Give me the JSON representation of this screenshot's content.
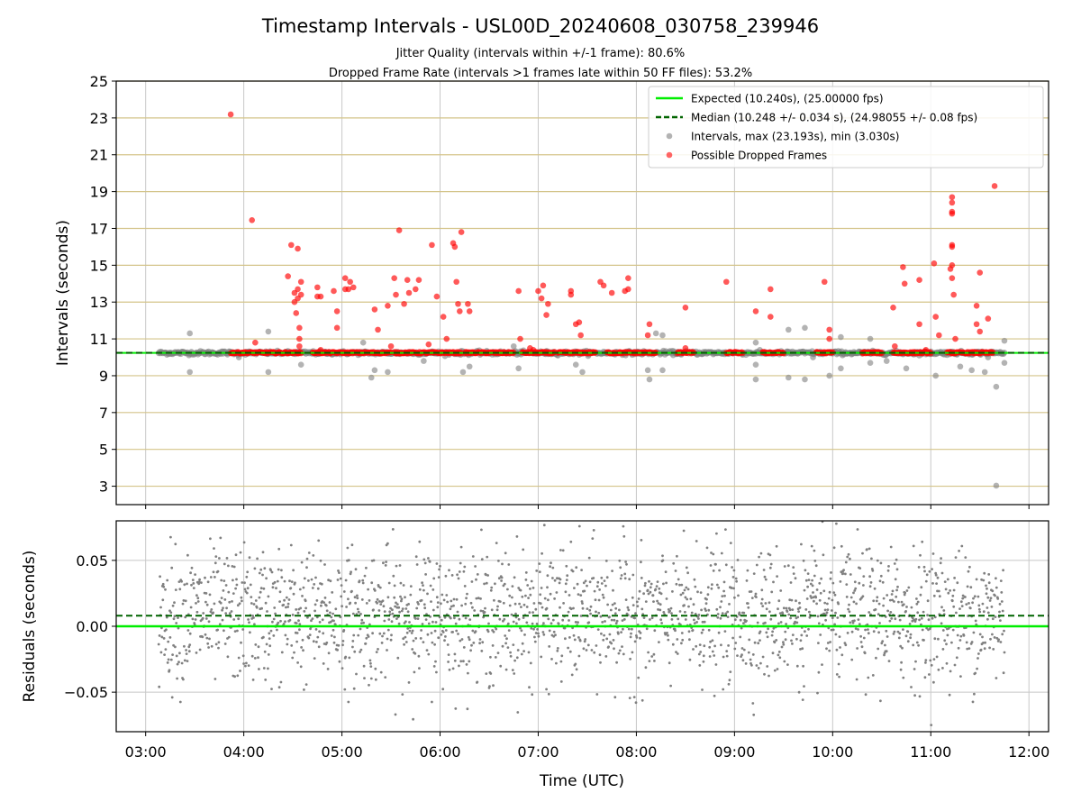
{
  "figure": {
    "title": "Timestamp Intervals - USL00D_20240608_030758_239946",
    "subtitle1": "Jitter Quality (intervals within +/-1 frame): 80.6%",
    "subtitle2": "Dropped Frame Rate (intervals >1 frames late within 50 FF files): 53.2%",
    "xlabel": "Time (UTC)"
  },
  "colors": {
    "expected": "#00ee00",
    "median": "#006400",
    "intervals": "#808080",
    "dropped": "#ff0000",
    "hgrid": "#d4c48a",
    "vgrid": "#c8c8c8"
  },
  "chart_data": [
    {
      "type": "scatter",
      "ylabel": "Intervals (seconds)",
      "xlim": [
        "02:42",
        "12:12"
      ],
      "ylim": [
        2,
        25
      ],
      "x_ticks": [
        "03:00",
        "04:00",
        "05:00",
        "06:00",
        "07:00",
        "08:00",
        "09:00",
        "10:00",
        "11:00",
        "12:00"
      ],
      "y_ticks": [
        3,
        5,
        7,
        9,
        11,
        13,
        15,
        17,
        19,
        21,
        23,
        25
      ],
      "grid": "on",
      "legend_position": "top-right",
      "legend": [
        {
          "label": "Expected (10.240s), (25.00000 fps)",
          "kind": "solid-line",
          "color": "#00ee00"
        },
        {
          "label": "Median (10.248 +/- 0.034 s), (24.98055 +/- 0.08 fps)",
          "kind": "dashed-line",
          "color": "#006400"
        },
        {
          "label": "Intervals, max (23.193s), min (3.030s)",
          "kind": "marker",
          "color": "#808080"
        },
        {
          "label": "Possible Dropped Frames",
          "kind": "marker",
          "color": "#ff0000"
        }
      ],
      "reference_lines": {
        "expected": 10.24,
        "median": 10.248
      },
      "time_range": [
        "03:08",
        "11:45"
      ],
      "series": [
        {
          "name": "Intervals, max (23.193s), min (3.030s)",
          "typical_value": 10.24,
          "outliers": [
            {
              "x": "03:27",
              "y": 11.3
            },
            {
              "x": "03:27",
              "y": 9.2
            },
            {
              "x": "03:57",
              "y": 10.0
            },
            {
              "x": "04:15",
              "y": 9.2
            },
            {
              "x": "04:15",
              "y": 11.4
            },
            {
              "x": "04:35",
              "y": 9.6
            },
            {
              "x": "04:45",
              "y": 10.2
            },
            {
              "x": "05:13",
              "y": 10.8
            },
            {
              "x": "05:18",
              "y": 8.9
            },
            {
              "x": "05:20",
              "y": 9.3
            },
            {
              "x": "05:28",
              "y": 9.2
            },
            {
              "x": "05:50",
              "y": 9.8
            },
            {
              "x": "06:14",
              "y": 9.2
            },
            {
              "x": "06:18",
              "y": 9.5
            },
            {
              "x": "06:45",
              "y": 10.6
            },
            {
              "x": "06:48",
              "y": 9.4
            },
            {
              "x": "07:23",
              "y": 9.6
            },
            {
              "x": "07:27",
              "y": 9.2
            },
            {
              "x": "08:07",
              "y": 9.3
            },
            {
              "x": "08:08",
              "y": 8.8
            },
            {
              "x": "08:12",
              "y": 11.3
            },
            {
              "x": "08:16",
              "y": 9.3
            },
            {
              "x": "08:16",
              "y": 11.2
            },
            {
              "x": "09:13",
              "y": 9.6
            },
            {
              "x": "09:13",
              "y": 8.8
            },
            {
              "x": "09:13",
              "y": 10.8
            },
            {
              "x": "09:33",
              "y": 11.5
            },
            {
              "x": "09:33",
              "y": 8.9
            },
            {
              "x": "09:43",
              "y": 11.6
            },
            {
              "x": "09:43",
              "y": 8.8
            },
            {
              "x": "09:48",
              "y": 10.0
            },
            {
              "x": "09:58",
              "y": 9.0
            },
            {
              "x": "10:05",
              "y": 11.1
            },
            {
              "x": "10:05",
              "y": 9.4
            },
            {
              "x": "10:23",
              "y": 11.0
            },
            {
              "x": "10:23",
              "y": 9.7
            },
            {
              "x": "10:33",
              "y": 9.8
            },
            {
              "x": "10:45",
              "y": 9.4
            },
            {
              "x": "11:03",
              "y": 9.0
            },
            {
              "x": "11:18",
              "y": 9.5
            },
            {
              "x": "11:25",
              "y": 9.3
            },
            {
              "x": "11:33",
              "y": 9.2
            },
            {
              "x": "11:35",
              "y": 10.0
            },
            {
              "x": "11:40",
              "y": 8.4
            },
            {
              "x": "11:40",
              "y": 3.03
            },
            {
              "x": "11:45",
              "y": 10.9
            },
            {
              "x": "11:45",
              "y": 9.7
            }
          ]
        },
        {
          "name": "Possible Dropped Frames",
          "baseline_value": 10.25,
          "baseline_segments": [
            [
              "03:52",
              "04:35"
            ],
            [
              "04:42",
              "05:30"
            ],
            [
              "05:32",
              "06:13"
            ],
            [
              "06:15",
              "06:45"
            ],
            [
              "06:50",
              "07:10"
            ],
            [
              "07:12",
              "07:35"
            ],
            [
              "07:42",
              "08:12"
            ],
            [
              "08:25",
              "08:35"
            ],
            [
              "08:55",
              "09:05"
            ],
            [
              "09:17",
              "09:30"
            ],
            [
              "09:50",
              "10:00"
            ],
            [
              "10:18",
              "10:30"
            ],
            [
              "10:37",
              "11:00"
            ],
            [
              "11:10",
              "11:38"
            ]
          ],
          "points": [
            {
              "x": "03:52",
              "y": 23.19
            },
            {
              "x": "04:05",
              "y": 17.45
            },
            {
              "x": "04:07",
              "y": 10.8
            },
            {
              "x": "04:27",
              "y": 14.4
            },
            {
              "x": "04:29",
              "y": 16.1
            },
            {
              "x": "04:31",
              "y": 13.0
            },
            {
              "x": "04:31",
              "y": 13.5
            },
            {
              "x": "04:32",
              "y": 12.4
            },
            {
              "x": "04:33",
              "y": 13.2
            },
            {
              "x": "04:33",
              "y": 13.7
            },
            {
              "x": "04:33",
              "y": 15.9
            },
            {
              "x": "04:34",
              "y": 11.6
            },
            {
              "x": "04:34",
              "y": 11.0
            },
            {
              "x": "04:34",
              "y": 10.6
            },
            {
              "x": "04:35",
              "y": 13.4
            },
            {
              "x": "04:35",
              "y": 14.1
            },
            {
              "x": "04:45",
              "y": 13.8
            },
            {
              "x": "04:45",
              "y": 13.3
            },
            {
              "x": "04:47",
              "y": 13.3
            },
            {
              "x": "04:47",
              "y": 10.4
            },
            {
              "x": "04:55",
              "y": 13.6
            },
            {
              "x": "04:57",
              "y": 12.5
            },
            {
              "x": "04:57",
              "y": 11.6
            },
            {
              "x": "05:02",
              "y": 14.3
            },
            {
              "x": "05:02",
              "y": 13.7
            },
            {
              "x": "05:04",
              "y": 13.7
            },
            {
              "x": "05:05",
              "y": 14.1
            },
            {
              "x": "05:07",
              "y": 13.8
            },
            {
              "x": "05:20",
              "y": 12.6
            },
            {
              "x": "05:22",
              "y": 11.5
            },
            {
              "x": "05:28",
              "y": 12.8
            },
            {
              "x": "05:30",
              "y": 10.6
            },
            {
              "x": "05:32",
              "y": 14.3
            },
            {
              "x": "05:33",
              "y": 13.4
            },
            {
              "x": "05:35",
              "y": 16.9
            },
            {
              "x": "05:38",
              "y": 12.9
            },
            {
              "x": "05:40",
              "y": 14.2
            },
            {
              "x": "05:41",
              "y": 13.5
            },
            {
              "x": "05:45",
              "y": 13.7
            },
            {
              "x": "05:47",
              "y": 14.2
            },
            {
              "x": "05:53",
              "y": 10.7
            },
            {
              "x": "05:55",
              "y": 16.1
            },
            {
              "x": "05:58",
              "y": 13.3
            },
            {
              "x": "06:02",
              "y": 12.2
            },
            {
              "x": "06:04",
              "y": 11.0
            },
            {
              "x": "06:08",
              "y": 16.2
            },
            {
              "x": "06:09",
              "y": 16.0
            },
            {
              "x": "06:10",
              "y": 14.1
            },
            {
              "x": "06:11",
              "y": 12.9
            },
            {
              "x": "06:12",
              "y": 12.5
            },
            {
              "x": "06:13",
              "y": 16.8
            },
            {
              "x": "06:17",
              "y": 12.9
            },
            {
              "x": "06:18",
              "y": 12.5
            },
            {
              "x": "06:48",
              "y": 13.6
            },
            {
              "x": "06:49",
              "y": 11.0
            },
            {
              "x": "06:55",
              "y": 10.5
            },
            {
              "x": "06:57",
              "y": 10.4
            },
            {
              "x": "07:00",
              "y": 13.6
            },
            {
              "x": "07:02",
              "y": 13.2
            },
            {
              "x": "07:03",
              "y": 13.9
            },
            {
              "x": "07:05",
              "y": 12.3
            },
            {
              "x": "07:06",
              "y": 12.9
            },
            {
              "x": "07:20",
              "y": 13.6
            },
            {
              "x": "07:20",
              "y": 13.4
            },
            {
              "x": "07:23",
              "y": 11.8
            },
            {
              "x": "07:25",
              "y": 11.9
            },
            {
              "x": "07:26",
              "y": 11.2
            },
            {
              "x": "07:38",
              "y": 14.1
            },
            {
              "x": "07:40",
              "y": 13.9
            },
            {
              "x": "07:45",
              "y": 13.5
            },
            {
              "x": "07:53",
              "y": 13.6
            },
            {
              "x": "07:55",
              "y": 14.3
            },
            {
              "x": "07:55",
              "y": 13.7
            },
            {
              "x": "08:07",
              "y": 11.2
            },
            {
              "x": "08:08",
              "y": 11.8
            },
            {
              "x": "08:30",
              "y": 12.7
            },
            {
              "x": "08:30",
              "y": 10.5
            },
            {
              "x": "08:55",
              "y": 14.1
            },
            {
              "x": "09:13",
              "y": 12.5
            },
            {
              "x": "09:22",
              "y": 12.2
            },
            {
              "x": "09:22",
              "y": 13.7
            },
            {
              "x": "09:55",
              "y": 14.1
            },
            {
              "x": "09:58",
              "y": 11.5
            },
            {
              "x": "09:58",
              "y": 11.0
            },
            {
              "x": "10:37",
              "y": 12.7
            },
            {
              "x": "10:38",
              "y": 10.6
            },
            {
              "x": "10:43",
              "y": 14.9
            },
            {
              "x": "10:44",
              "y": 14.0
            },
            {
              "x": "10:53",
              "y": 14.2
            },
            {
              "x": "10:53",
              "y": 11.8
            },
            {
              "x": "10:57",
              "y": 10.4
            },
            {
              "x": "11:02",
              "y": 15.1
            },
            {
              "x": "11:03",
              "y": 12.2
            },
            {
              "x": "11:05",
              "y": 11.2
            },
            {
              "x": "11:12",
              "y": 14.8
            },
            {
              "x": "11:13",
              "y": 18.7
            },
            {
              "x": "11:13",
              "y": 18.4
            },
            {
              "x": "11:13",
              "y": 17.9
            },
            {
              "x": "11:13",
              "y": 17.8
            },
            {
              "x": "11:13",
              "y": 16.1
            },
            {
              "x": "11:13",
              "y": 16.0
            },
            {
              "x": "11:13",
              "y": 15.0
            },
            {
              "x": "11:13",
              "y": 14.3
            },
            {
              "x": "11:14",
              "y": 13.4
            },
            {
              "x": "11:15",
              "y": 11.0
            },
            {
              "x": "11:28",
              "y": 12.8
            },
            {
              "x": "11:28",
              "y": 11.8
            },
            {
              "x": "11:30",
              "y": 14.6
            },
            {
              "x": "11:30",
              "y": 11.4
            },
            {
              "x": "11:35",
              "y": 12.1
            },
            {
              "x": "11:39",
              "y": 19.3
            }
          ]
        },
        {
          "name": "Expected (10.240s), (25.00000 fps)",
          "y": 10.24
        },
        {
          "name": "Median (10.248 +/- 0.034 s), (24.98055 +/- 0.08 fps)",
          "y": 10.248
        }
      ]
    },
    {
      "type": "scatter",
      "ylabel": "Residuals (seconds)",
      "xlim": [
        "02:42",
        "12:12"
      ],
      "ylim": [
        -0.08,
        0.08
      ],
      "x_ticks": [
        "03:00",
        "04:00",
        "05:00",
        "06:00",
        "07:00",
        "08:00",
        "09:00",
        "10:00",
        "11:00",
        "12:00"
      ],
      "y_ticks": [
        -0.05,
        0.0,
        0.05
      ],
      "y_tick_labels": [
        "−0.05",
        "0.00",
        "0.05"
      ],
      "grid": "on",
      "time_range": [
        "03:08",
        "11:45"
      ],
      "series": [
        {
          "name": "Residuals",
          "mean": 0.008,
          "std": 0.025
        },
        {
          "name": "Expected",
          "y": 0.0
        },
        {
          "name": "Median",
          "y": 0.008
        }
      ]
    }
  ]
}
